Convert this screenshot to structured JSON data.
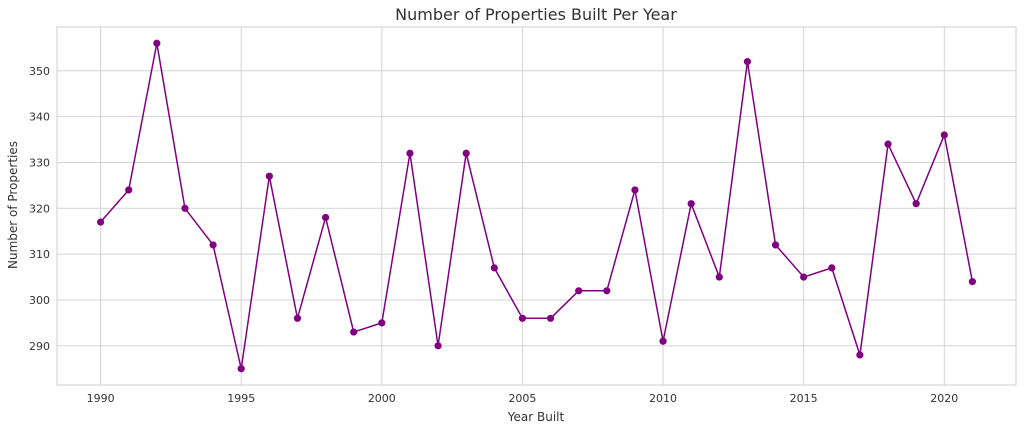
{
  "chart_data": {
    "type": "line",
    "title": "Number of Properties Built Per Year",
    "xlabel": "Year Built",
    "ylabel": "Number of Properties",
    "x": [
      1990,
      1991,
      1992,
      1993,
      1994,
      1995,
      1996,
      1997,
      1998,
      1999,
      2000,
      2001,
      2002,
      2003,
      2004,
      2005,
      2006,
      2007,
      2008,
      2009,
      2010,
      2011,
      2012,
      2013,
      2014,
      2015,
      2016,
      2017,
      2018,
      2019,
      2020,
      2021
    ],
    "series": [
      {
        "values": [
          317,
          324,
          356,
          320,
          312,
          285,
          327,
          296,
          318,
          293,
          295,
          332,
          290,
          332,
          307,
          296,
          296,
          302,
          302,
          324,
          291,
          321,
          305,
          352,
          312,
          305,
          307,
          288,
          334,
          321,
          336,
          304
        ],
        "color": "#800080"
      }
    ],
    "xlim": [
      1988.45,
      2022.55
    ],
    "ylim": [
      281.45,
      359.55
    ],
    "xticks": [
      1990,
      1995,
      2000,
      2005,
      2010,
      2015,
      2020
    ],
    "yticks": [
      290,
      300,
      310,
      320,
      330,
      340,
      350
    ],
    "grid": true,
    "legend": "none"
  }
}
